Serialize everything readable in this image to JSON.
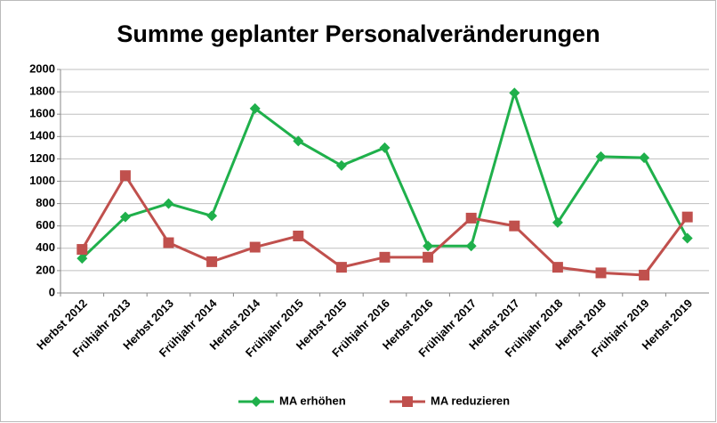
{
  "chart_data": {
    "type": "line",
    "title": "Summe geplanter Personalveränderungen",
    "categories": [
      "Herbst 2012",
      "Frühjahr 2013",
      "Herbst 2013",
      "Frühjahr 2014",
      "Herbst 2014",
      "Frühjahr 2015",
      "Herbst 2015",
      "Frühjahr 2016",
      "Herbst 2016",
      "Frühjahr 2017",
      "Herbst 2017",
      "Frühjahr 2018",
      "Herbst 2018",
      "Frühjahr 2019",
      "Herbst 2019"
    ],
    "series": [
      {
        "name": "MA erhöhen",
        "color": "#1fb04b",
        "marker": "diamond",
        "values": [
          310,
          680,
          800,
          690,
          1650,
          1360,
          1140,
          1300,
          420,
          420,
          1790,
          630,
          1220,
          1210,
          490
        ]
      },
      {
        "name": "MA reduzieren",
        "color": "#c0504d",
        "marker": "square",
        "values": [
          390,
          1050,
          450,
          280,
          410,
          510,
          230,
          320,
          320,
          670,
          600,
          230,
          180,
          160,
          680
        ]
      }
    ],
    "ylim": [
      0,
      2000
    ],
    "yticks": [
      0,
      200,
      400,
      600,
      800,
      1000,
      1200,
      1400,
      1600,
      1800,
      2000
    ],
    "grid": true,
    "legend": "bottom"
  }
}
